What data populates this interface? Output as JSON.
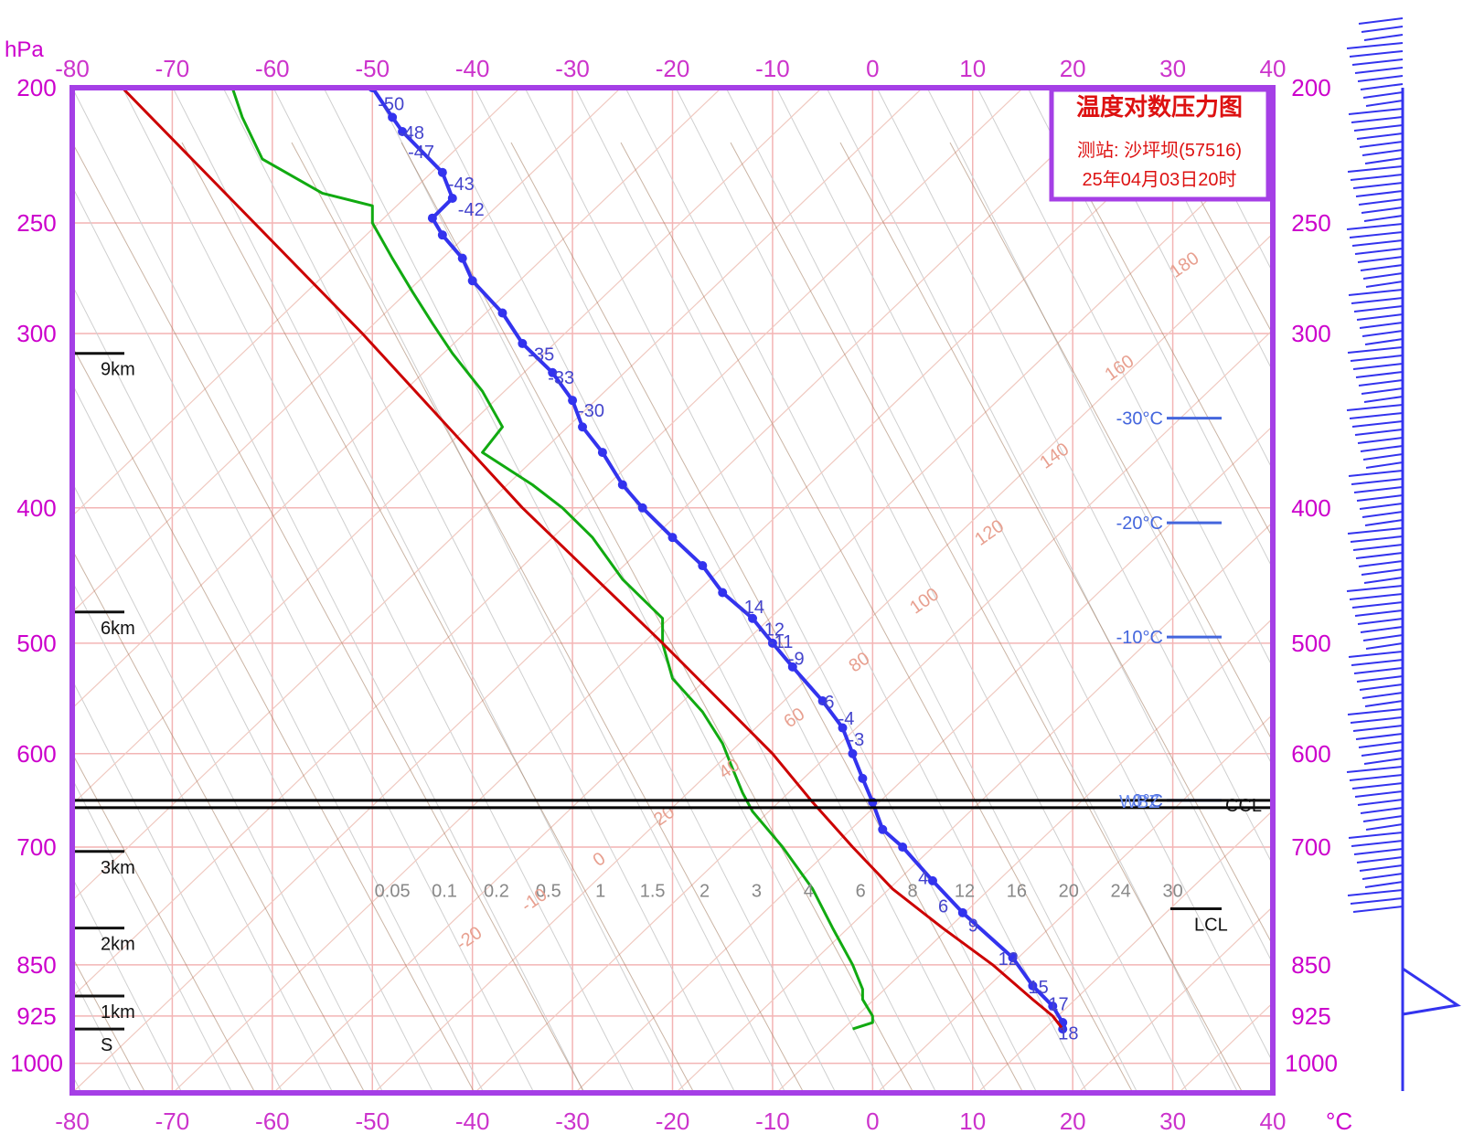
{
  "chart_data": {
    "type": "line",
    "title": "温度对数压力图",
    "station": "测站: 沙坪坝(57516)",
    "time": "25年04月03日20时",
    "pressure_unit": "hPa",
    "temperature_unit": "°C",
    "xlim": [
      -80,
      40
    ],
    "ylim": [
      1050,
      200
    ],
    "pressure_ticks": [
      200,
      250,
      300,
      400,
      500,
      600,
      700,
      850,
      925,
      1000
    ],
    "temperature_ticks": [
      -80,
      -70,
      -60,
      -50,
      -40,
      -30,
      -20,
      -10,
      0,
      10,
      20,
      30,
      40
    ],
    "height_markers": [
      {
        "label": "9km",
        "p": 310
      },
      {
        "label": "6km",
        "p": 475
      },
      {
        "label": "3km",
        "p": 705
      },
      {
        "label": "2km",
        "p": 800
      },
      {
        "label": "1km",
        "p": 895
      },
      {
        "label": "S",
        "p": 945
      }
    ],
    "isotherm_markers": [
      {
        "label": "-30°C",
        "p": 345
      },
      {
        "label": "-20°C",
        "p": 410
      },
      {
        "label": "-10°C",
        "p": 495
      },
      {
        "label": "0°C",
        "p": 648
      }
    ],
    "levels": [
      {
        "label": "CCL",
        "p": 652
      },
      {
        "label": "LCL",
        "p": 775
      }
    ],
    "wbz_label": "WBZ",
    "series": [
      {
        "name": "temperature",
        "color": "#3333ee",
        "points": [
          [
            200,
            -50
          ],
          [
            210,
            -48
          ],
          [
            215,
            -47
          ],
          [
            230,
            -43
          ],
          [
            240,
            -42
          ],
          [
            248,
            -44
          ],
          [
            255,
            -43
          ],
          [
            265,
            -41
          ],
          [
            275,
            -40
          ],
          [
            290,
            -37
          ],
          [
            305,
            -35
          ],
          [
            320,
            -32
          ],
          [
            335,
            -30
          ],
          [
            350,
            -29
          ],
          [
            365,
            -27
          ],
          [
            385,
            -25
          ],
          [
            400,
            -23
          ],
          [
            420,
            -20
          ],
          [
            440,
            -17
          ],
          [
            460,
            -15
          ],
          [
            480,
            -12
          ],
          [
            500,
            -10
          ],
          [
            520,
            -8
          ],
          [
            550,
            -5
          ],
          [
            575,
            -3
          ],
          [
            600,
            -2
          ],
          [
            625,
            -1
          ],
          [
            650,
            0
          ],
          [
            680,
            1
          ],
          [
            700,
            3
          ],
          [
            740,
            6
          ],
          [
            780,
            9
          ],
          [
            840,
            14
          ],
          [
            880,
            16
          ],
          [
            910,
            18
          ],
          [
            935,
            19
          ],
          [
            945,
            19
          ]
        ]
      },
      {
        "name": "dewpoint",
        "color": "#11aa11",
        "points": [
          [
            200,
            -64
          ],
          [
            210,
            -63
          ],
          [
            225,
            -61
          ],
          [
            238,
            -55
          ],
          [
            243,
            -50
          ],
          [
            250,
            -50
          ],
          [
            265,
            -48
          ],
          [
            280,
            -46
          ],
          [
            295,
            -44
          ],
          [
            310,
            -42
          ],
          [
            330,
            -39
          ],
          [
            350,
            -37
          ],
          [
            365,
            -39
          ],
          [
            385,
            -34
          ],
          [
            400,
            -31
          ],
          [
            420,
            -28
          ],
          [
            450,
            -25
          ],
          [
            480,
            -21
          ],
          [
            500,
            -21
          ],
          [
            530,
            -20
          ],
          [
            560,
            -17
          ],
          [
            590,
            -15
          ],
          [
            615,
            -14
          ],
          [
            640,
            -13
          ],
          [
            660,
            -12
          ],
          [
            700,
            -9
          ],
          [
            750,
            -6
          ],
          [
            800,
            -4
          ],
          [
            850,
            -2
          ],
          [
            885,
            -1
          ],
          [
            900,
            -1
          ],
          [
            925,
            0
          ],
          [
            935,
            0
          ],
          [
            945,
            -2
          ]
        ]
      },
      {
        "name": "parcel",
        "color": "#cc0000",
        "points": [
          [
            200,
            -75
          ],
          [
            300,
            -51
          ],
          [
            400,
            -35
          ],
          [
            500,
            -21
          ],
          [
            600,
            -10
          ],
          [
            650,
            -6
          ],
          [
            700,
            -2
          ],
          [
            750,
            2
          ],
          [
            800,
            7
          ],
          [
            850,
            12
          ],
          [
            900,
            16
          ],
          [
            925,
            18
          ],
          [
            945,
            19
          ]
        ]
      }
    ],
    "annotations": [
      {
        "text": "-50",
        "p": 205,
        "t": -50
      },
      {
        "text": "-48",
        "p": 215,
        "t": -48
      },
      {
        "text": "-47",
        "p": 222,
        "t": -47
      },
      {
        "text": "-43",
        "p": 234,
        "t": -43
      },
      {
        "text": "-42",
        "p": 244,
        "t": -42
      },
      {
        "text": "-35",
        "p": 310,
        "t": -35
      },
      {
        "text": "-33",
        "p": 322,
        "t": -33
      },
      {
        "text": "-30",
        "p": 340,
        "t": -30
      },
      {
        "text": "-14",
        "p": 470,
        "t": -14
      },
      {
        "text": "-12",
        "p": 488,
        "t": -12
      },
      {
        "text": "-11",
        "p": 498,
        "t": -11
      },
      {
        "text": "-9",
        "p": 512,
        "t": -9
      },
      {
        "text": "-6",
        "p": 550,
        "t": -6
      },
      {
        "text": "-4",
        "p": 565,
        "t": -4
      },
      {
        "text": "-3",
        "p": 585,
        "t": -3
      },
      {
        "text": "4",
        "p": 735,
        "t": 4
      },
      {
        "text": "6",
        "p": 770,
        "t": 6
      },
      {
        "text": "9",
        "p": 795,
        "t": 9
      },
      {
        "text": "12",
        "p": 840,
        "t": 12
      },
      {
        "text": "15",
        "p": 880,
        "t": 15
      },
      {
        "text": "17",
        "p": 905,
        "t": 17
      },
      {
        "text": "18",
        "p": 950,
        "t": 18
      }
    ],
    "mixing_ratio_labels": [
      "0.05",
      "0.1",
      "0.2",
      "0.5",
      "1",
      "1.5",
      "2",
      "3",
      "4",
      "6",
      "8",
      "12",
      "16",
      "20",
      "24",
      "30"
    ],
    "dry_adiabat_labels": [
      "-20",
      "-10",
      "0",
      "20",
      "40",
      "60",
      "80",
      "100",
      "120",
      "140",
      "160",
      "180"
    ]
  },
  "colors": {
    "frame": "#a53fe6",
    "grid": "#f3b4b4",
    "axis_text": "#cc00cc",
    "wind_barbs": "#3333ee"
  }
}
